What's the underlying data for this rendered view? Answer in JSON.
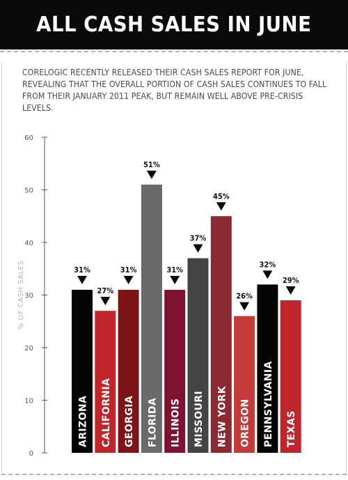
{
  "header": {
    "title": "ALL CASH SALES IN JUNE"
  },
  "intro": {
    "text": "CORELOGIC RECENTLY RELEASED THEIR CASH SALES REPORT FOR JUNE, REVEALING THAT THE OVERALL PORTION OF CASH SALES CONTINUES TO FALL FROM THEIR JANUARY 2011 PEAK, BUT REMAIN WELL ABOVE PRE-CRISIS LEVELS."
  },
  "chart_data": {
    "type": "bar",
    "ylabel": "% OF CASH SALES",
    "ylim": [
      0,
      60
    ],
    "yticks": [
      0,
      10,
      20,
      30,
      40,
      50,
      60
    ],
    "categories": [
      "ARIZONA",
      "CALIFORNIA",
      "GEORGIA",
      "FLORIDA",
      "ILLINOIS",
      "MISSOURI",
      "NEW YORK",
      "OREGON",
      "PENNSYLVANIA",
      "TEXAS"
    ],
    "values": [
      31,
      27,
      31,
      51,
      31,
      37,
      45,
      26,
      32,
      29
    ],
    "data_labels": [
      "31%",
      "27%",
      "31%",
      "51%",
      "31%",
      "37%",
      "45%",
      "26%",
      "32%",
      "29%"
    ],
    "colors": [
      "#050505",
      "#c0252b",
      "#7c1418",
      "#6a6a6a",
      "#7e1230",
      "#444444",
      "#8b2a30",
      "#c43a38",
      "#050505",
      "#c0252b"
    ],
    "grid": false
  }
}
